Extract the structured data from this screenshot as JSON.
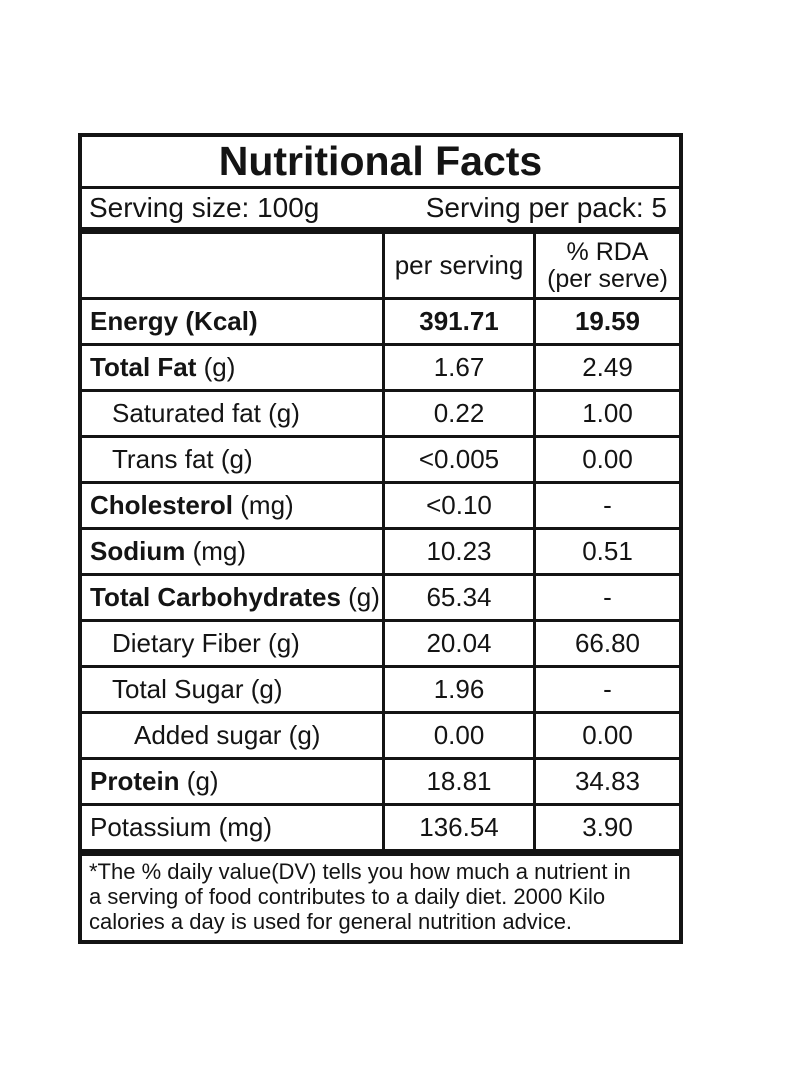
{
  "label": {
    "title": "Nutritional Facts",
    "serving_size": "Serving size: 100g",
    "serving_per_pack": "Serving per pack: 5",
    "columns": {
      "per_serving": "per serving",
      "rda_line1": "% RDA",
      "rda_line2": "(per serve)"
    },
    "rows": [
      {
        "label": "Energy",
        "unit": "(Kcal)",
        "label_bold": true,
        "unit_bold": true,
        "indent": 0,
        "per_serving": "391.71",
        "rda": "19.59",
        "values_bold": true
      },
      {
        "label": "Total Fat",
        "unit": "(g)",
        "label_bold": true,
        "unit_bold": false,
        "indent": 0,
        "per_serving": "1.67",
        "rda": "2.49",
        "values_bold": false
      },
      {
        "label": "Saturated fat",
        "unit": "(g)",
        "label_bold": false,
        "unit_bold": false,
        "indent": 1,
        "per_serving": "0.22",
        "rda": "1.00",
        "values_bold": false
      },
      {
        "label": "Trans fat",
        "unit": "(g)",
        "label_bold": false,
        "unit_bold": false,
        "indent": 1,
        "per_serving": "<0.005",
        "rda": "0.00",
        "values_bold": false
      },
      {
        "label": "Cholesterol",
        "unit": "(mg)",
        "label_bold": true,
        "unit_bold": false,
        "indent": 0,
        "per_serving": "<0.10",
        "rda": "-",
        "values_bold": false
      },
      {
        "label": "Sodium",
        "unit": "(mg)",
        "label_bold": true,
        "unit_bold": false,
        "indent": 0,
        "per_serving": "10.23",
        "rda": "0.51",
        "values_bold": false
      },
      {
        "label": "Total Carbohydrates",
        "unit": "(g)",
        "label_bold": true,
        "unit_bold": false,
        "indent": 0,
        "per_serving": "65.34",
        "rda": "-",
        "values_bold": false
      },
      {
        "label": "Dietary Fiber",
        "unit": "(g)",
        "label_bold": false,
        "unit_bold": false,
        "indent": 1,
        "per_serving": "20.04",
        "rda": "66.80",
        "values_bold": false
      },
      {
        "label": "Total Sugar",
        "unit": "(g)",
        "label_bold": false,
        "unit_bold": false,
        "indent": 1,
        "per_serving": "1.96",
        "rda": "-",
        "values_bold": false
      },
      {
        "label": "Added sugar",
        "unit": "(g)",
        "label_bold": false,
        "unit_bold": false,
        "indent": 2,
        "per_serving": "0.00",
        "rda": "0.00",
        "values_bold": false
      },
      {
        "label": "Protein",
        "unit": "(g)",
        "label_bold": true,
        "unit_bold": false,
        "indent": 0,
        "per_serving": "18.81",
        "rda": "34.83",
        "values_bold": false
      },
      {
        "label": "Potassium",
        "unit": "(mg)",
        "label_bold": false,
        "unit_bold": false,
        "indent": 0,
        "per_serving": "136.54",
        "rda": "3.90",
        "values_bold": false
      }
    ],
    "footnote_lines": [
      "*The % daily value(DV) tells you how much a nutrient in",
      "a serving of food contributes to a daily diet. 2000 Kilo",
      "calories a day is used for general nutrition advice."
    ]
  },
  "colors": {
    "background": "#ffffff",
    "border": "#141414",
    "text": "#141414"
  }
}
